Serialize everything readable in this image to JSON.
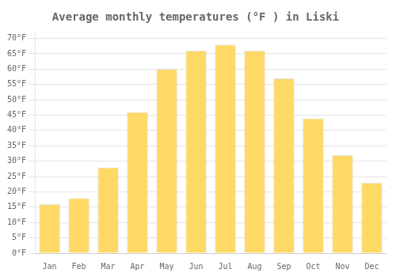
{
  "chart_data": {
    "type": "bar",
    "title": "Average monthly temperatures (°F ) in Liski",
    "categories": [
      "Jan",
      "Feb",
      "Mar",
      "Apr",
      "May",
      "Jun",
      "Jul",
      "Aug",
      "Sep",
      "Oct",
      "Nov",
      "Dec"
    ],
    "values": [
      16,
      18,
      28,
      46,
      60,
      66,
      68,
      66,
      57,
      44,
      32,
      23
    ],
    "color": "#FFD966",
    "ylim": [
      0,
      72
    ],
    "yticks": [
      {
        "value": 0,
        "label": "0°F"
      },
      {
        "value": 5,
        "label": "5°F"
      },
      {
        "value": 10,
        "label": "10°F"
      },
      {
        "value": 15,
        "label": "15°F"
      },
      {
        "value": 20,
        "label": "20°F"
      },
      {
        "value": 25,
        "label": "25°F"
      },
      {
        "value": 30,
        "label": "30°F"
      },
      {
        "value": 35,
        "label": "35°F"
      },
      {
        "value": 40,
        "label": "40°F"
      },
      {
        "value": 45,
        "label": "45°F"
      },
      {
        "value": 50,
        "label": "50°F"
      },
      {
        "value": 55,
        "label": "55°F"
      },
      {
        "value": 60,
        "label": "60°F"
      },
      {
        "value": 65,
        "label": "65°F"
      },
      {
        "value": 70,
        "label": "70°F"
      }
    ],
    "grid": true
  }
}
